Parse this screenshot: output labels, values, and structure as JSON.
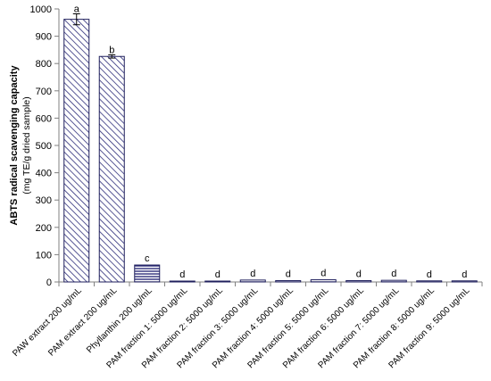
{
  "chart_data": {
    "type": "bar",
    "ylabel": "ABTS radical scavenging capacity",
    "ylabel_sub": "(mg TE/g dried sample)",
    "ylim": [
      0,
      1000
    ],
    "yticks": [
      0,
      100,
      200,
      300,
      400,
      500,
      600,
      700,
      800,
      900,
      1000
    ],
    "grid": false,
    "categories": [
      "PAW extract 200 ug/mL",
      "PAM extract 200 ug/mL",
      "Phyllanthin 200 ug/mL",
      "PAM fraction 1: 5000 ug/mL",
      "PAM fraction 2: 5000 ug/mL",
      "PAM fraction 3: 5000 ug/mL",
      "PAM fraction 4: 5000 ug/mL",
      "PAM fraction 5: 5000 ug/mL",
      "PAM fraction 6: 5000 ug/mL",
      "PAM fraction 7: 5000 ug/mL",
      "PAM fraction 8: 5000 ug/mL",
      "PAM fraction 9: 5000 ug/mL"
    ],
    "values": [
      962,
      826,
      62,
      3,
      3,
      7,
      5,
      8,
      5,
      6,
      4,
      4
    ],
    "errors": [
      20,
      6,
      0,
      0,
      0,
      0,
      0,
      0,
      0,
      0,
      0,
      0
    ],
    "significance": [
      "a",
      "b",
      "c",
      "d",
      "d",
      "d",
      "d",
      "d",
      "d",
      "d",
      "d",
      "d"
    ],
    "patterns": [
      "diag",
      "diag",
      "horiz",
      "horiz",
      "horiz",
      "horiz",
      "horiz",
      "horiz",
      "horiz",
      "horiz",
      "horiz",
      "horiz"
    ],
    "colors": {
      "bar_stroke": "#1f1f5c",
      "pattern_line": "#2e2e7a",
      "axis": "#808080"
    }
  }
}
